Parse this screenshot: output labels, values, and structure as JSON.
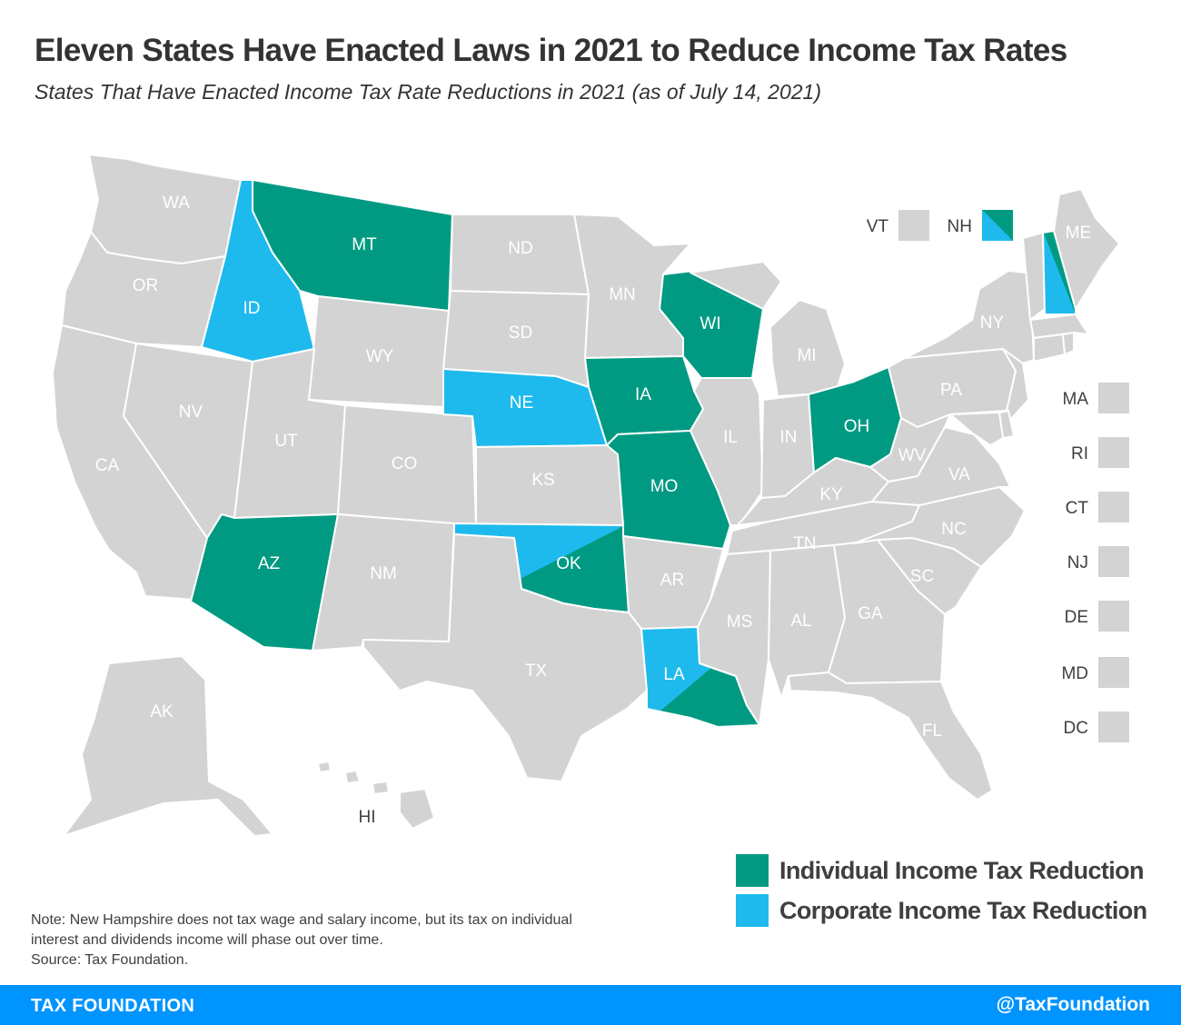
{
  "title": "Eleven States Have Enacted Laws in 2021 to Reduce Income Tax Rates",
  "subtitle": "States That Have Enacted Income Tax Rate Reductions in 2021 (as of July 14, 2021)",
  "colors": {
    "individual": "#009a82",
    "corporate": "#1ebaed",
    "none": "#d3d3d3",
    "footer": "#0094ff"
  },
  "legend": {
    "individual": "Individual Income Tax Reduction",
    "corporate": "Corporate Income Tax Reduction"
  },
  "states": {
    "WA": "none",
    "OR": "none",
    "CA": "none",
    "NV": "none",
    "ID": "corporate",
    "MT": "individual",
    "WY": "none",
    "UT": "none",
    "AZ": "individual",
    "CO": "none",
    "NM": "none",
    "ND": "none",
    "SD": "none",
    "NE": "corporate",
    "KS": "none",
    "OK": "both",
    "TX": "none",
    "MN": "none",
    "IA": "individual",
    "MO": "individual",
    "AR": "none",
    "LA": "both",
    "WI": "individual",
    "IL": "none",
    "MI": "none",
    "IN": "none",
    "OH": "individual",
    "KY": "none",
    "TN": "none",
    "MS": "none",
    "AL": "none",
    "GA": "none",
    "FL": "none",
    "SC": "none",
    "NC": "none",
    "VA": "none",
    "WV": "none",
    "PA": "none",
    "NY": "none",
    "ME": "none",
    "VT": "none",
    "NH": "both",
    "MA": "none",
    "RI": "none",
    "CT": "none",
    "NJ": "none",
    "DE": "none",
    "MD": "none",
    "DC": "none",
    "AK": "none",
    "HI": "none"
  },
  "labels": {
    "WA": "WA",
    "OR": "OR",
    "CA": "CA",
    "NV": "NV",
    "ID": "ID",
    "MT": "MT",
    "WY": "WY",
    "UT": "UT",
    "AZ": "AZ",
    "CO": "CO",
    "NM": "NM",
    "ND": "ND",
    "SD": "SD",
    "NE": "NE",
    "KS": "KS",
    "OK": "OK",
    "TX": "TX",
    "MN": "MN",
    "IA": "IA",
    "MO": "MO",
    "AR": "AR",
    "LA": "LA",
    "WI": "WI",
    "IL": "IL",
    "MI": "MI",
    "IN": "IN",
    "OH": "OH",
    "KY": "KY",
    "TN": "TN",
    "MS": "MS",
    "AL": "AL",
    "GA": "GA",
    "FL": "FL",
    "SC": "SC",
    "NC": "NC",
    "VA": "VA",
    "WV": "WV",
    "PA": "PA",
    "NY": "NY",
    "ME": "ME",
    "AK": "AK",
    "HI": "HI"
  },
  "box_labels": {
    "VT": "VT",
    "NH": "NH",
    "MA": "MA",
    "RI": "RI",
    "CT": "CT",
    "NJ": "NJ",
    "DE": "DE",
    "MD": "MD",
    "DC": "DC"
  },
  "note": "Note: New Hampshire does not tax wage and salary income, but its tax on individual interest and dividends income will phase out over time.",
  "source": "Source: Tax Foundation.",
  "footer": {
    "left": "TAX FOUNDATION",
    "right": "@TaxFoundation"
  }
}
